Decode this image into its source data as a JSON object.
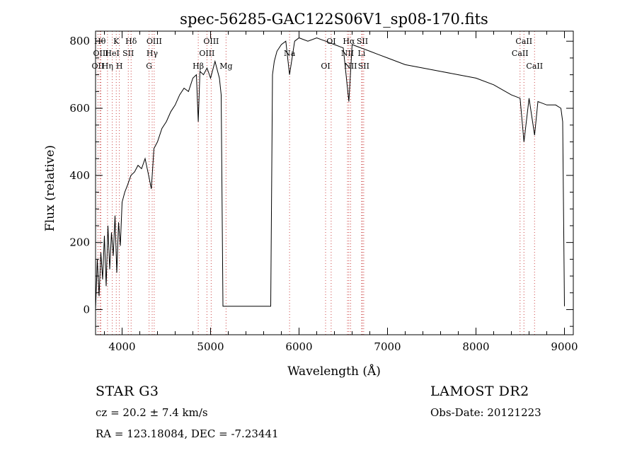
{
  "chart_data": {
    "type": "line",
    "title": "spec-56285-GAC122S06V1_sp08-170.fits",
    "xlabel": "Wavelength (Å)",
    "ylabel": "Flux (relative)",
    "xlim": [
      3700,
      9100
    ],
    "ylim": [
      -75,
      830
    ],
    "xticks": [
      4000,
      5000,
      6000,
      7000,
      8000,
      9000
    ],
    "yticks": [
      0,
      200,
      400,
      600,
      800
    ],
    "grid": false,
    "legend": "none",
    "line_color": "#000000",
    "marker_line_color": "#cc4444",
    "series": [
      {
        "x": [
          3700,
          3720,
          3740,
          3760,
          3780,
          3800,
          3820,
          3840,
          3860,
          3880,
          3900,
          3920,
          3940,
          3960,
          3980,
          4000,
          4030,
          4060,
          4100,
          4140,
          4180,
          4220,
          4260,
          4300,
          4330,
          4360,
          4400,
          4450,
          4500,
          4550,
          4600,
          4650,
          4700,
          4750,
          4800,
          4840,
          4861,
          4880,
          4920,
          4960,
          5000,
          5050,
          5100,
          5120,
          5140,
          5680,
          5700,
          5720,
          5750,
          5800,
          5850,
          5893,
          5950,
          6000,
          6100,
          6200,
          6300,
          6400,
          6500,
          6563,
          6600,
          6700,
          6800,
          6900,
          7000,
          7200,
          7400,
          7600,
          7800,
          8000,
          8200,
          8400,
          8498,
          8542,
          8600,
          8662,
          8700,
          8800,
          8900,
          8960,
          8980,
          9000
        ],
        "y": [
          0,
          150,
          40,
          170,
          90,
          220,
          70,
          250,
          120,
          230,
          160,
          280,
          110,
          260,
          190,
          320,
          350,
          370,
          400,
          410,
          430,
          420,
          450,
          400,
          360,
          480,
          500,
          540,
          560,
          590,
          610,
          640,
          660,
          650,
          690,
          700,
          560,
          710,
          700,
          720,
          690,
          740,
          690,
          640,
          10,
          10,
          700,
          740,
          770,
          790,
          800,
          700,
          800,
          810,
          800,
          810,
          800,
          790,
          780,
          620,
          790,
          780,
          770,
          760,
          750,
          730,
          720,
          710,
          700,
          690,
          670,
          640,
          630,
          500,
          630,
          520,
          620,
          610,
          610,
          600,
          560,
          10
        ]
      }
    ],
    "line_markers": [
      {
        "label": "OII",
        "x": 3727,
        "row": 2
      },
      {
        "label": "Hθ",
        "x": 3750,
        "row": 0
      },
      {
        "label": "OIII",
        "x": 3760,
        "row": 1
      },
      {
        "label": "Hη",
        "x": 3835,
        "row": 2
      },
      {
        "label": "HeI",
        "x": 3889,
        "row": 1
      },
      {
        "label": "K",
        "x": 3934,
        "row": 0
      },
      {
        "label": "H",
        "x": 3969,
        "row": 2
      },
      {
        "label": "SII",
        "x": 4070,
        "row": 1
      },
      {
        "label": "Hδ",
        "x": 4102,
        "row": 0
      },
      {
        "label": "G",
        "x": 4305,
        "row": 2
      },
      {
        "label": "Hγ",
        "x": 4340,
        "row": 1
      },
      {
        "label": "OIII",
        "x": 4363,
        "row": 0
      },
      {
        "label": "Hβ",
        "x": 4861,
        "row": 2
      },
      {
        "label": "OIII",
        "x": 4959,
        "row": 1
      },
      {
        "label": "OIII",
        "x": 5007,
        "row": 0
      },
      {
        "label": "Mg",
        "x": 5175,
        "row": 2
      },
      {
        "label": "Na",
        "x": 5893,
        "row": 1
      },
      {
        "label": "OI",
        "x": 6300,
        "row": 2
      },
      {
        "label": "OI",
        "x": 6363,
        "row": 0
      },
      {
        "label": "NII",
        "x": 6548,
        "row": 1
      },
      {
        "label": "Hα",
        "x": 6563,
        "row": 0
      },
      {
        "label": "NII",
        "x": 6583,
        "row": 2
      },
      {
        "label": "Li",
        "x": 6707,
        "row": 1
      },
      {
        "label": "SII",
        "x": 6716,
        "row": 0
      },
      {
        "label": "SII",
        "x": 6731,
        "row": 2
      },
      {
        "label": "CaII",
        "x": 8498,
        "row": 1
      },
      {
        "label": "CaII",
        "x": 8542,
        "row": 0
      },
      {
        "label": "CaII",
        "x": 8662,
        "row": 2
      }
    ]
  },
  "info": {
    "classification": "STAR    G3",
    "redshift": "cz = 20.2 ± 7.4 km/s",
    "coords": "RA = 123.18084, DEC =  -7.23441",
    "survey": "LAMOST DR2",
    "obs_date": "Obs-Date: 20121223"
  }
}
